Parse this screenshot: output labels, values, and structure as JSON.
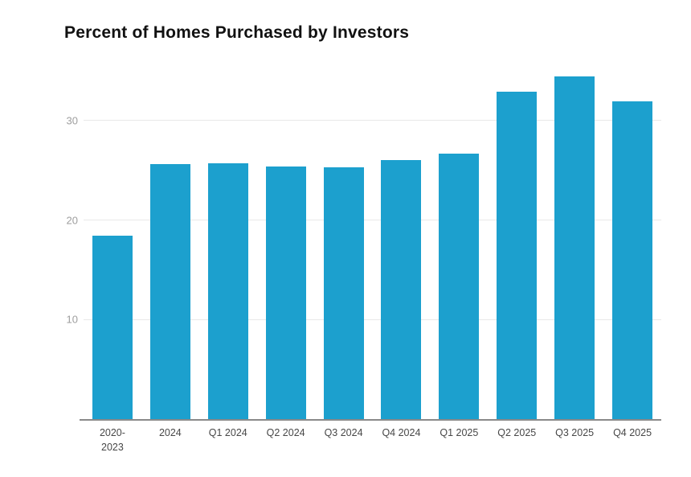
{
  "page": {
    "background": "#ffffff"
  },
  "chart_data": {
    "type": "bar",
    "title": "Percent of Homes Purchased by Investors",
    "categories": [
      "2020-\n2023",
      "2024",
      "Q1 2024",
      "Q2 2024",
      "Q3 2024",
      "Q4 2024",
      "Q1 2025",
      "Q2 2025",
      "Q3 2025",
      "Q4 2025"
    ],
    "values": [
      18.4,
      25.6,
      25.7,
      25.4,
      25.3,
      26.0,
      26.7,
      32.9,
      34.4,
      31.9
    ],
    "xlabel": "",
    "ylabel": "",
    "yticks": [
      10,
      20,
      30
    ],
    "ylim": [
      0,
      35
    ],
    "grid": true,
    "legend_position": "none",
    "colors": {
      "bar": "#1CA0CE",
      "title_text": "#111111",
      "gridline": "#e8e8e8",
      "axis_line": "#8a8a8a",
      "ytick_text": "#9e9e9e",
      "xtick_text": "#474747",
      "background": "#ffffff"
    }
  }
}
